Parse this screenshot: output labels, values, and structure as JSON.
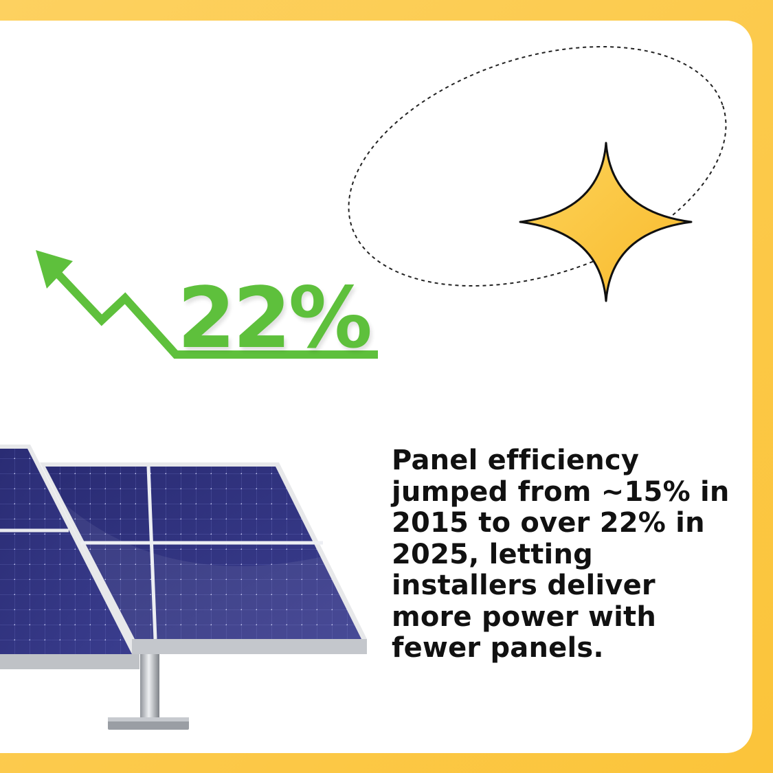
{
  "stat": {
    "value": "22%"
  },
  "caption": {
    "text": "Panel efficiency jumped from ~15% in 2015 to over 22% in 2025, letting installers deliver more power with fewer panels."
  },
  "colors": {
    "border_yellow": "#fcc93f",
    "accent_green": "#5ec03c",
    "star_yellow": "#fbc63b",
    "panel_blue": "#2b2d78"
  },
  "icons": [
    "trend-up-arrow-icon",
    "sparkle-star-icon",
    "solar-panel-illustration"
  ]
}
